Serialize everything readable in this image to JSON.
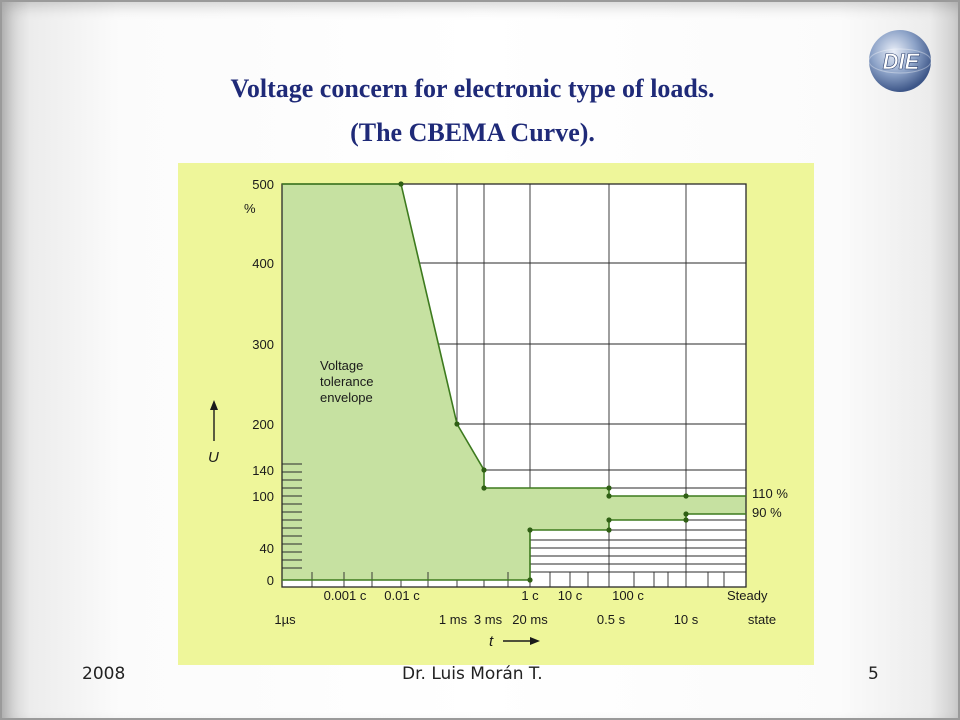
{
  "slide": {
    "title_line1": "Voltage concern for electronic type of loads.",
    "title_line2": "(The CBEMA Curve).",
    "logo_text": "DIE",
    "footer": {
      "year": "2008",
      "author": "Dr. Luis Morán T.",
      "page": "5"
    }
  },
  "colors": {
    "title": "#1f2a78",
    "figure_background": "#eef69a",
    "envelope_fill": "#c6e1a1",
    "curve": "#3d7a1e",
    "grid": "#2a2a2a"
  },
  "chart_data": {
    "type": "line",
    "title": "",
    "xlabel": "t",
    "ylabel": "U",
    "y_unit": "%",
    "y_ticks": [
      "500",
      "400",
      "300",
      "200",
      "140",
      "100",
      "40",
      "0"
    ],
    "x_ticks_upper": [
      "0.001 c",
      "0.01 c",
      "1 c",
      "10 c",
      "100 c",
      "Steady"
    ],
    "x_ticks_lower": [
      "1µs",
      "1 ms",
      "3 ms",
      "20 ms",
      "0.5 s",
      "10 s",
      "state"
    ],
    "envelope_label": [
      "Voltage",
      "tolerance",
      "envelope"
    ],
    "series": [
      {
        "name": "",
        "x": [
          "1µs",
          "0.01 c",
          "1 ms",
          "3 ms",
          "3 ms",
          "0.5 s",
          "0.5 s",
          "10 s",
          "Steady state"
        ],
        "values": [
          500,
          500,
          200,
          140,
          120,
          120,
          110,
          110,
          110
        ]
      },
      {
        "name": "",
        "x": [
          "1µs",
          "20 ms",
          "20 ms",
          "0.5 s",
          "0.5 s",
          "10 s",
          "10 s",
          "Steady state"
        ],
        "values": [
          0,
          0,
          70,
          70,
          80,
          80,
          90,
          90
        ]
      }
    ],
    "annotations": [
      "110 %",
      "90 %"
    ],
    "grid": true,
    "legend": "none"
  }
}
